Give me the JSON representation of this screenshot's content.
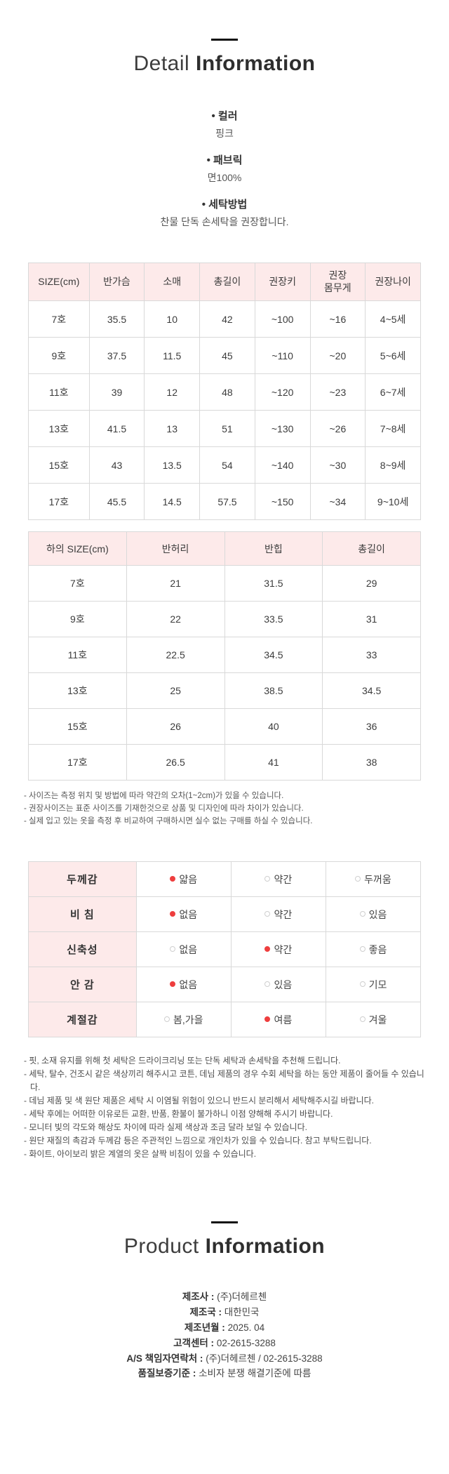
{
  "detail_header": {
    "light": "Detail",
    "bold": "Information"
  },
  "product_details": {
    "color_label": "• 컬러",
    "color_value": "핑크",
    "fabric_label": "• 패브릭",
    "fabric_value": "면100%",
    "wash_label": "• 세탁방법",
    "wash_value": "찬물 단독 손세탁을 권장합니다."
  },
  "top_size_table": {
    "headers": [
      "SIZE(cm)",
      "반가슴",
      "소매",
      "총길이",
      "권장키",
      "권장\n몸무게",
      "권장나이"
    ],
    "rows": [
      [
        "7호",
        "35.5",
        "10",
        "42",
        "~100",
        "~16",
        "4~5세"
      ],
      [
        "9호",
        "37.5",
        "11.5",
        "45",
        "~110",
        "~20",
        "5~6세"
      ],
      [
        "11호",
        "39",
        "12",
        "48",
        "~120",
        "~23",
        "6~7세"
      ],
      [
        "13호",
        "41.5",
        "13",
        "51",
        "~130",
        "~26",
        "7~8세"
      ],
      [
        "15호",
        "43",
        "13.5",
        "54",
        "~140",
        "~30",
        "8~9세"
      ],
      [
        "17호",
        "45.5",
        "14.5",
        "57.5",
        "~150",
        "~34",
        "9~10세"
      ]
    ]
  },
  "bottom_size_table": {
    "headers": [
      "하의 SIZE(cm)",
      "반허리",
      "반힙",
      "총길이"
    ],
    "rows": [
      [
        "7호",
        "21",
        "31.5",
        "29"
      ],
      [
        "9호",
        "22",
        "33.5",
        "31"
      ],
      [
        "11호",
        "22.5",
        "34.5",
        "33"
      ],
      [
        "13호",
        "25",
        "38.5",
        "34.5"
      ],
      [
        "15호",
        "26",
        "40",
        "36"
      ],
      [
        "17호",
        "26.5",
        "41",
        "38"
      ]
    ]
  },
  "size_notes": [
    "- 사이즈는 측정 위치 및 방법에 따라 약간의 오차(1~2cm)가 있을 수 있습니다.",
    "- 권장사이즈는 표준 사이즈를 기재한것으로 상품 및 디자인에 따라 차이가 있습니다.",
    "- 실제 입고 있는 옷을 측정 후 비교하여 구매하시면 실수 없는 구매를 하실 수 있습니다."
  ],
  "feature_table": {
    "rows": [
      {
        "label": "두께감",
        "options": [
          {
            "text": "얇음",
            "selected": true
          },
          {
            "text": "약간",
            "selected": false
          },
          {
            "text": "두꺼움",
            "selected": false
          }
        ]
      },
      {
        "label": "비 침",
        "options": [
          {
            "text": "없음",
            "selected": true
          },
          {
            "text": "약간",
            "selected": false
          },
          {
            "text": "있음",
            "selected": false
          }
        ]
      },
      {
        "label": "신축성",
        "options": [
          {
            "text": "없음",
            "selected": false
          },
          {
            "text": "약간",
            "selected": true
          },
          {
            "text": "좋음",
            "selected": false
          }
        ]
      },
      {
        "label": "안 감",
        "options": [
          {
            "text": "없음",
            "selected": true
          },
          {
            "text": "있음",
            "selected": false
          },
          {
            "text": "기모",
            "selected": false
          }
        ]
      },
      {
        "label": "계절감",
        "options": [
          {
            "text": "봄,가을",
            "selected": false
          },
          {
            "text": "여름",
            "selected": true
          },
          {
            "text": "겨울",
            "selected": false
          }
        ]
      }
    ]
  },
  "care_notes": [
    "- 핏, 소재 유지를 위해 첫 세탁은 드라이크리닝 또는 단독 세탁과 손세탁을 추천해 드립니다.",
    "- 세탁, 탈수, 건조시 같은 색상끼리 해주시고 코튼, 데님 제품의 경우 수회 세탁을 하는 동안 제품이 줄어들 수 있습니다.",
    "- 데님 제품 및 색 원단 제품은 세탁 시 이염될 위험이 있으니 반드시 분리해서 세탁해주시길 바랍니다.",
    "- 세탁 후에는 어떠한 이유로든 교환, 반품, 환불이 불가하니 이점 양해해 주시기 바랍니다.",
    "- 모니터 빛의 각도와 해상도 차이에 따라 실제 색상과 조금 달라 보일 수 있습니다.",
    "- 원단 재질의 촉감과 두께감 등은 주관적인 느낌으로 개인차가 있을 수 있습니다. 참고 부탁드립니다.",
    "- 화이트, 아이보리 밝은 계열의 옷은 살짝 비침이 있을 수 있습니다."
  ],
  "product_header": {
    "light": "Product",
    "bold": "Information"
  },
  "product_info": [
    {
      "label": "제조사 :",
      "value": "(주)더헤르첸"
    },
    {
      "label": "제조국 :",
      "value": "대한민국"
    },
    {
      "label": "제조년월 :",
      "value": "2025. 04"
    },
    {
      "label": "고객센터 :",
      "value": "02-2615-3288"
    },
    {
      "label": "A/S 책임자연락처 :",
      "value": "(주)더헤르첸 / 02-2615-3288"
    },
    {
      "label": "품질보증기준 :",
      "value": "소비자 분쟁 해결기준에 따름"
    }
  ],
  "colors": {
    "table_header_pink": "#fdeaea",
    "selected_dot_red": "#ee3e3e",
    "table_border": "#d9d9d9",
    "heading_dark": "#2e2e2e"
  }
}
